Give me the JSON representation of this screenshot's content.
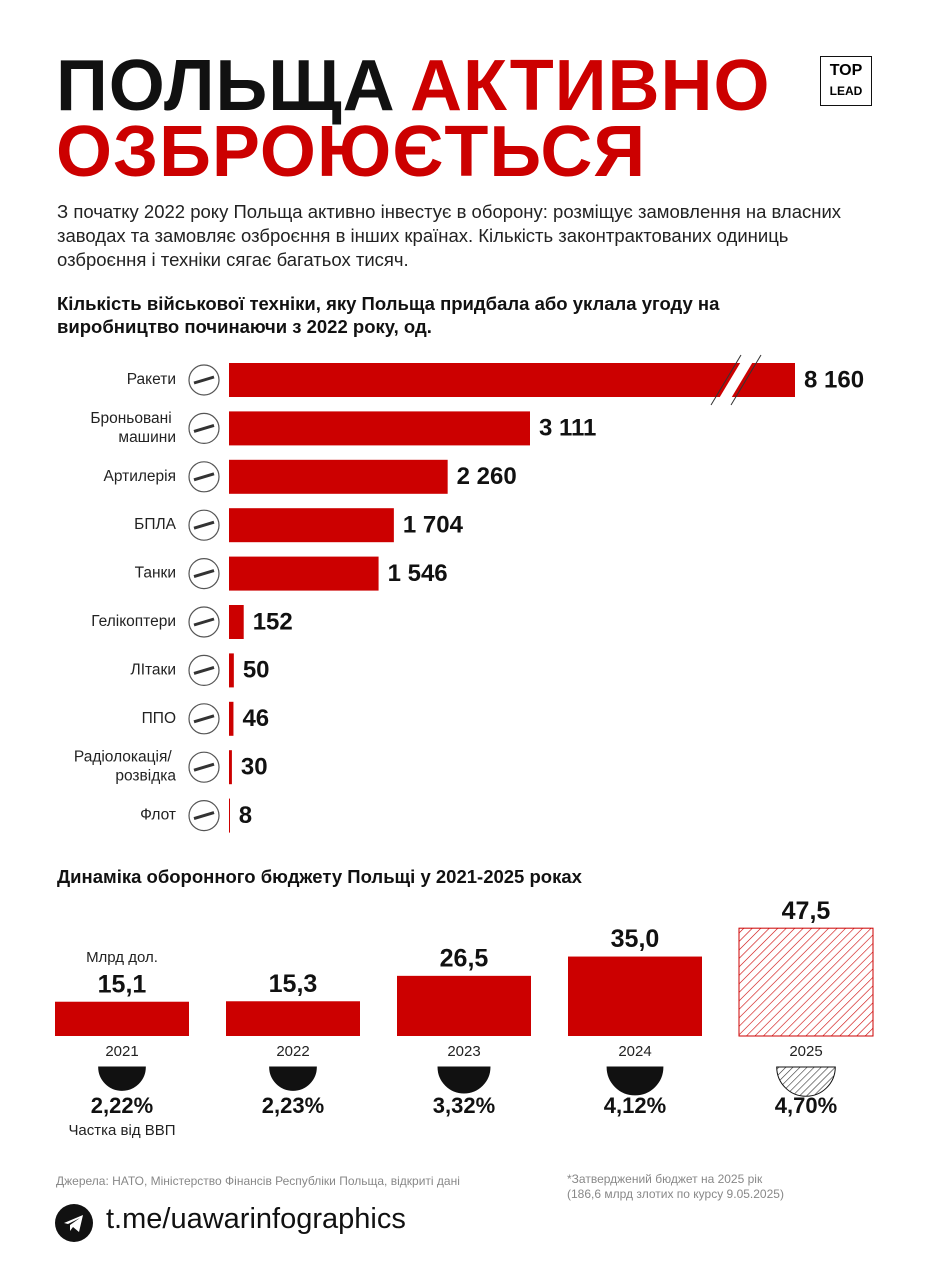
{
  "header": {
    "title": [
      "ПОЛЬЩА",
      "АКТИВНО",
      "ОЗБРОЮЄТЬСЯ"
    ],
    "logo": [
      "TOP",
      "LEAD"
    ],
    "description": "З початку 2022 року Польща активно інвестує в оборону: розміщує замовлення на власних заводах та замовляє озброєння в інших країнах. Кількість законтрактованих одиниць озброєння і техніки сягає багатьох тисяч."
  },
  "chart_data": [
    {
      "type": "hbar",
      "title": "Кількість військової техніки, яку Польща придбала або уклала угоду на виробництво починаючи з 2022 року, од.",
      "categories": [
        "Ракети",
        "Броньовані машини",
        "Артилерія",
        "БПЛА",
        "Танки",
        "Гелікоптери",
        "ЛІтаки",
        "ППО",
        "Радіолокація/ розвідка",
        "Флот"
      ],
      "values": [
        8160,
        3111,
        2260,
        1704,
        1546,
        152,
        50,
        46,
        30,
        8
      ],
      "value_labels": [
        "8 160",
        "3 111",
        "2 260",
        "1 704",
        "1 546",
        "152",
        "50",
        "46",
        "30",
        "8"
      ],
      "color": "#cc0000",
      "xlim": [
        0,
        5850
      ],
      "axis_break": true
    },
    {
      "type": "bar",
      "title": "Динаміка оборонного бюджету Польщі у 2021-2025 роках",
      "ylabel": "Млрд дол.",
      "categories": [
        "2021",
        "2022",
        "2023",
        "2024",
        "2025"
      ],
      "values": [
        15.1,
        15.3,
        26.5,
        35.0,
        47.5
      ],
      "value_labels": [
        "15,1",
        "15,3",
        "26,5",
        "35,0",
        "47,5"
      ],
      "hatched": [
        false,
        false,
        false,
        false,
        true
      ],
      "color": "#cc0000",
      "ylim": [
        0,
        50
      ],
      "share": {
        "label": "Частка від ВВП",
        "values": [
          2.22,
          2.23,
          3.32,
          4.12,
          4.7
        ],
        "value_labels": [
          "2,22%",
          "2,23%",
          "3,32%",
          "4,12%",
          "4,70%"
        ]
      }
    }
  ],
  "footer": {
    "sources": "Джерела: НАТО, Міністерство Фінансів Республіки Польща, відкриті дані",
    "note": [
      "*Затверджений бюджет на 2025 рік",
      "(186,6 млрд злотих по курсу 9.05.2025)"
    ],
    "link": "t.me/uawarinfographics"
  }
}
